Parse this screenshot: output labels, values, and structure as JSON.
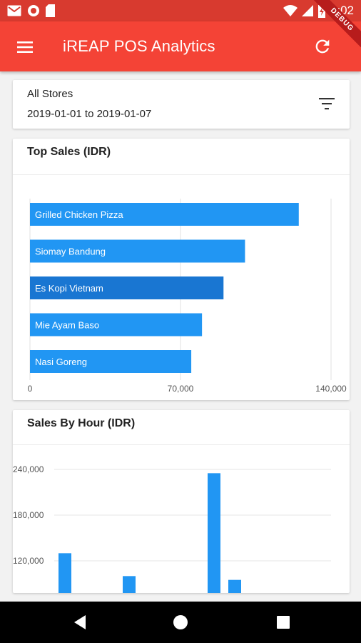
{
  "status_bar": {
    "time": "5:02",
    "icons": [
      "gmail-icon",
      "circle-notification-icon",
      "sd-card-icon",
      "wifi-icon",
      "signal-icon",
      "battery-charging-icon"
    ],
    "background_color": "#d83a2f"
  },
  "app_bar": {
    "title": "iREAP POS Analytics",
    "menu_icon": "menu-icon",
    "refresh_icon": "refresh-icon",
    "debug_banner": "DEBUG",
    "background_color": "#f44336"
  },
  "filter": {
    "store": "All Stores",
    "date_range": "2019-01-01 to 2019-01-07",
    "icon": "filter-list-icon"
  },
  "top_sales": {
    "title": "Top Sales (IDR)"
  },
  "sales_by_hour": {
    "title": "Sales By Hour  (IDR)"
  },
  "nav_bar": {
    "icons": [
      "back-icon",
      "home-icon",
      "recents-icon"
    ]
  },
  "chart_data": [
    {
      "type": "bar",
      "orientation": "horizontal",
      "title": "Top Sales (IDR)",
      "categories": [
        "Grilled Chicken Pizza",
        "Siomay Bandung",
        "Es Kopi Vietnam",
        "Mie Ayam Baso",
        "Nasi Goreng"
      ],
      "values": [
        125000,
        100000,
        90000,
        80000,
        75000
      ],
      "xlim": [
        0,
        140000
      ],
      "xticks": [
        "0",
        "70,000",
        "140,000"
      ],
      "highlighted_index": 2,
      "bar_color": "#2196f3",
      "highlight_color": "#1976d2",
      "grid": true
    },
    {
      "type": "bar",
      "orientation": "vertical",
      "title": "Sales By Hour  (IDR)",
      "values": [
        130000,
        100000,
        235000,
        95000
      ],
      "visible_range": [
        90000,
        255000
      ],
      "yticks": [
        "240,000",
        "180,000",
        "120,000"
      ],
      "ytick_values": [
        240000,
        180000,
        120000
      ],
      "bar_color": "#2196f3",
      "grid": true
    }
  ]
}
